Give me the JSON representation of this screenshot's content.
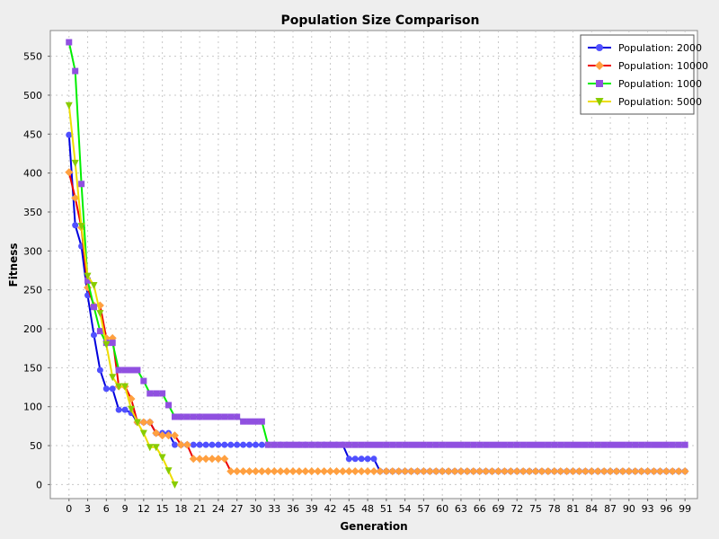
{
  "chart_data": {
    "type": "line",
    "title": "Population Size Comparison",
    "xlabel": "Generation",
    "ylabel": "Fitness",
    "xlim": [
      -3,
      101
    ],
    "ylim": [
      -18,
      583
    ],
    "x_ticks": [
      0,
      3,
      6,
      9,
      12,
      15,
      18,
      21,
      24,
      27,
      30,
      33,
      36,
      39,
      42,
      45,
      48,
      51,
      54,
      57,
      60,
      63,
      66,
      69,
      72,
      75,
      78,
      81,
      84,
      87,
      90,
      93,
      96,
      99
    ],
    "y_ticks": [
      0,
      50,
      100,
      150,
      200,
      250,
      300,
      350,
      400,
      450,
      500,
      550
    ],
    "grid": true,
    "legend_position": "top-right",
    "colors": {
      "plot_bg": "#ffffff",
      "grid": "#c8c8c8",
      "outer_bg": "#eeeeee"
    },
    "series": [
      {
        "name": "Population: 2000",
        "line_color": "#0000dd",
        "marker_color": "#5050ff",
        "marker": "circle",
        "runs": [
          {
            "to": 0,
            "v": 449
          },
          {
            "to": 1,
            "v": 333
          },
          {
            "to": 2,
            "v": 306
          },
          {
            "to": 3,
            "v": 243
          },
          {
            "to": 4,
            "v": 192
          },
          {
            "to": 5,
            "v": 147
          },
          {
            "to": 7,
            "v": 123
          },
          {
            "to": 9,
            "v": 96
          },
          {
            "to": 10,
            "v": 92
          },
          {
            "to": 13,
            "v": 80
          },
          {
            "to": 16,
            "v": 66
          },
          {
            "to": 44,
            "v": 51
          },
          {
            "to": 49,
            "v": 33
          },
          {
            "to": 99,
            "v": 17
          }
        ]
      },
      {
        "name": "Population: 10000",
        "line_color": "#ee0000",
        "marker_color": "#ffa040",
        "marker": "diamond",
        "runs": [
          {
            "to": 0,
            "v": 401
          },
          {
            "to": 1,
            "v": 368
          },
          {
            "to": 2,
            "v": 330
          },
          {
            "to": 3,
            "v": 253
          },
          {
            "to": 4,
            "v": 230
          },
          {
            "to": 5,
            "v": 230
          },
          {
            "to": 7,
            "v": 188
          },
          {
            "to": 9,
            "v": 126
          },
          {
            "to": 10,
            "v": 110
          },
          {
            "to": 13,
            "v": 80
          },
          {
            "to": 14,
            "v": 66
          },
          {
            "to": 17,
            "v": 63
          },
          {
            "to": 19,
            "v": 51
          },
          {
            "to": 25,
            "v": 33
          },
          {
            "to": 99,
            "v": 17
          }
        ]
      },
      {
        "name": "Population: 1000",
        "line_color": "#00ee00",
        "marker_color": "#9050e0",
        "marker": "square",
        "runs": [
          {
            "to": 0,
            "v": 568
          },
          {
            "to": 1,
            "v": 531
          },
          {
            "to": 2,
            "v": 386
          },
          {
            "to": 3,
            "v": 262
          },
          {
            "to": 4,
            "v": 228
          },
          {
            "to": 5,
            "v": 197
          },
          {
            "to": 7,
            "v": 182
          },
          {
            "to": 11,
            "v": 147
          },
          {
            "to": 12,
            "v": 133
          },
          {
            "to": 15,
            "v": 117
          },
          {
            "to": 16,
            "v": 102
          },
          {
            "to": 27,
            "v": 87
          },
          {
            "to": 31,
            "v": 81
          },
          {
            "to": 99,
            "v": 51
          }
        ]
      },
      {
        "name": "Population: 5000",
        "line_color": "#eedd00",
        "marker_color": "#88cc00",
        "marker": "triangle",
        "runs": [
          {
            "to": 0,
            "v": 487
          },
          {
            "to": 1,
            "v": 413
          },
          {
            "to": 2,
            "v": 332
          },
          {
            "to": 3,
            "v": 268
          },
          {
            "to": 4,
            "v": 256
          },
          {
            "to": 5,
            "v": 220
          },
          {
            "to": 6,
            "v": 180
          },
          {
            "to": 7,
            "v": 138
          },
          {
            "to": 9,
            "v": 126
          },
          {
            "to": 10,
            "v": 97
          },
          {
            "to": 11,
            "v": 80
          },
          {
            "to": 12,
            "v": 66
          },
          {
            "to": 14,
            "v": 48
          },
          {
            "to": 15,
            "v": 35
          },
          {
            "to": 16,
            "v": 18
          },
          {
            "to": 17,
            "v": 0
          }
        ]
      }
    ]
  }
}
